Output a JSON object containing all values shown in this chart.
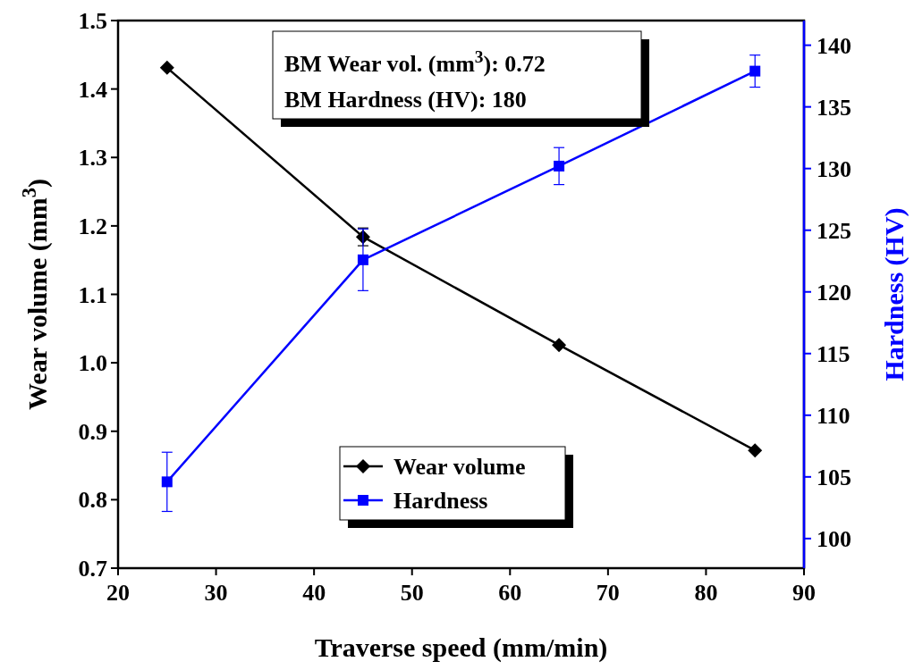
{
  "chart_data": {
    "type": "line",
    "xlabel": "Traverse speed (mm/min)",
    "ylabel": "Wear volume (mm$^{3}$)",
    "y2label": "Hardness (HV)",
    "x": [
      25,
      45,
      65,
      85
    ],
    "series": [
      {
        "name": "Wear volume",
        "color": "#000000",
        "values": [
          1.431,
          1.184,
          1.026,
          0.872
        ],
        "errors": [
          null,
          0.013,
          null,
          null
        ],
        "marker": "diamond"
      },
      {
        "name": "Hardness",
        "color": "#0000ff",
        "values": [
          104.6,
          122.6,
          130.2,
          137.9
        ],
        "errors": [
          2.4,
          2.5,
          1.5,
          1.3
        ],
        "marker": "square",
        "axis": "y2"
      }
    ],
    "xlim": [
      20,
      90
    ],
    "xticks": [
      20,
      30,
      40,
      50,
      60,
      70,
      80,
      90
    ],
    "ylim": [
      0.7,
      1.5
    ],
    "yticks": [
      0.7,
      0.8,
      0.9,
      {
        "value": 1,
        "label": "1.0"
      },
      1.1,
      1.2,
      1.3,
      1.4,
      1.5
    ],
    "y2lim": [
      97.6,
      142
    ],
    "y2ticks": [
      100,
      105,
      110,
      115,
      120,
      125,
      130,
      135,
      140
    ],
    "annotations": [
      "BM Wear vol. (mm$^{3}$): 0.72",
      "BM Hardness (HV): 180"
    ],
    "legend": "bottom",
    "grid": false,
    "line_style": "solid"
  }
}
